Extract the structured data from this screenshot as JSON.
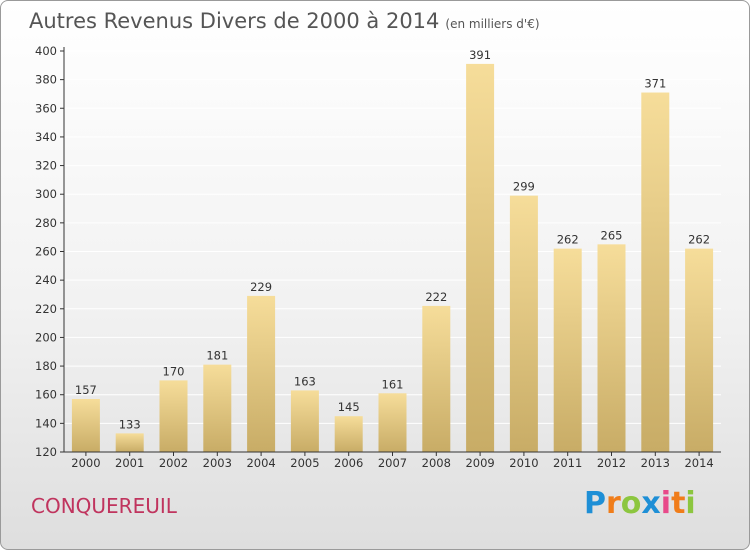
{
  "chart_title": "Autres Revenus Divers de 2000 à 2014",
  "chart_subtitle": "(en milliers d'€)",
  "commune": "CONQUEREUIL",
  "logo": {
    "letters": [
      "P",
      "r",
      "o",
      "x",
      "i",
      "t",
      "i"
    ],
    "colors": [
      "#1e8fd6",
      "#f07d1a",
      "#8cc63f",
      "#1e8fd6",
      "#e84a8a",
      "#f07d1a",
      "#8cc63f"
    ]
  },
  "colors": {
    "bar_light": "#f6dd9a",
    "bar_dark": "#c8ac66",
    "grid": "#ffffff",
    "axis": "#333333"
  },
  "chart_data": {
    "type": "bar",
    "title": "Autres Revenus Divers de 2000 à 2014",
    "subtitle": "(en milliers d'€)",
    "xlabel": "",
    "ylabel": "",
    "categories": [
      "2000",
      "2001",
      "2002",
      "2003",
      "2004",
      "2005",
      "2006",
      "2007",
      "2008",
      "2009",
      "2010",
      "2011",
      "2012",
      "2013",
      "2014"
    ],
    "values": [
      157,
      133,
      170,
      181,
      229,
      163,
      145,
      161,
      222,
      391,
      299,
      262,
      265,
      371,
      262
    ],
    "ylim": [
      120,
      400
    ],
    "yticks": [
      120,
      140,
      160,
      180,
      200,
      220,
      240,
      260,
      280,
      300,
      320,
      340,
      360,
      380,
      400
    ],
    "grid": true,
    "legend": "none"
  }
}
